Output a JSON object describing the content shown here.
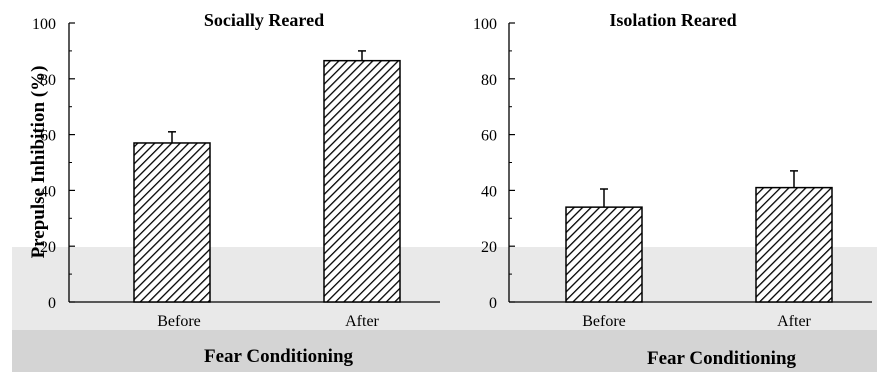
{
  "ylabel": "Prepulse Inhibition (%)",
  "xlabel": "Fear Conditioning",
  "colors": {
    "bar_hatch": "#000000",
    "bar_fill": "#ffffff",
    "band_light": "#e9e9e9",
    "band_dark": "#d4d4d4"
  },
  "chart_data": [
    {
      "type": "bar",
      "title": "Socially Reared",
      "categories": [
        "Before",
        "After"
      ],
      "values": [
        57,
        86.5
      ],
      "error": [
        4,
        3.5
      ],
      "xlabel": "Fear Conditioning",
      "ylabel": "Prepulse Inhibition (%)",
      "ylim": [
        0,
        100
      ],
      "yticks": [
        0,
        20,
        40,
        60,
        80,
        100
      ],
      "grid": false
    },
    {
      "type": "bar",
      "title": "Isolation Reared",
      "categories": [
        "Before",
        "After"
      ],
      "values": [
        34,
        41
      ],
      "error": [
        6.5,
        6
      ],
      "xlabel": "Fear Conditioning",
      "ylabel": "",
      "ylim": [
        0,
        100
      ],
      "yticks": [
        0,
        20,
        40,
        60,
        80,
        100
      ],
      "grid": false
    }
  ]
}
